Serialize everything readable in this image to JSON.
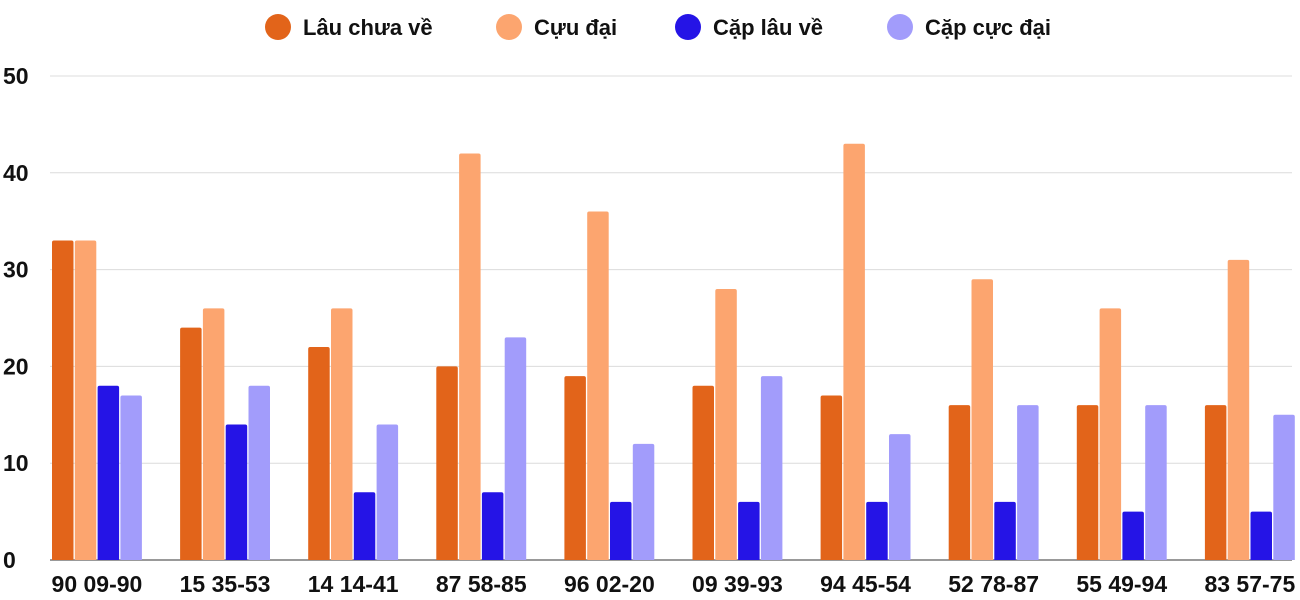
{
  "chart_data": {
    "type": "bar",
    "title": "",
    "xlabel": "",
    "ylabel": "",
    "ylim": [
      0,
      50
    ],
    "yticks": [
      0,
      10,
      20,
      30,
      40,
      50
    ],
    "grid": true,
    "legend_position": "top-center",
    "categories": [
      "90 09-90",
      "15 35-53",
      "14 14-41",
      "87 58-85",
      "96 02-20",
      "09 39-93",
      "94 45-54",
      "52 78-87",
      "55 49-94",
      "83 57-75"
    ],
    "series": [
      {
        "name": "Lâu chưa về",
        "color": "#e2641a",
        "values": [
          33,
          24,
          22,
          20,
          19,
          18,
          17,
          16,
          16,
          16
        ]
      },
      {
        "name": "Cựu đại",
        "color": "#fca56f",
        "values": [
          33,
          26,
          26,
          42,
          36,
          28,
          43,
          29,
          26,
          31
        ]
      },
      {
        "name": "Cặp lâu về",
        "color": "#2514e6",
        "values": [
          18,
          14,
          7,
          7,
          6,
          6,
          6,
          6,
          5,
          5
        ]
      },
      {
        "name": "Cặp cực đại",
        "color": "#a29cfb",
        "values": [
          17,
          18,
          14,
          23,
          12,
          19,
          13,
          16,
          16,
          15
        ]
      }
    ]
  }
}
